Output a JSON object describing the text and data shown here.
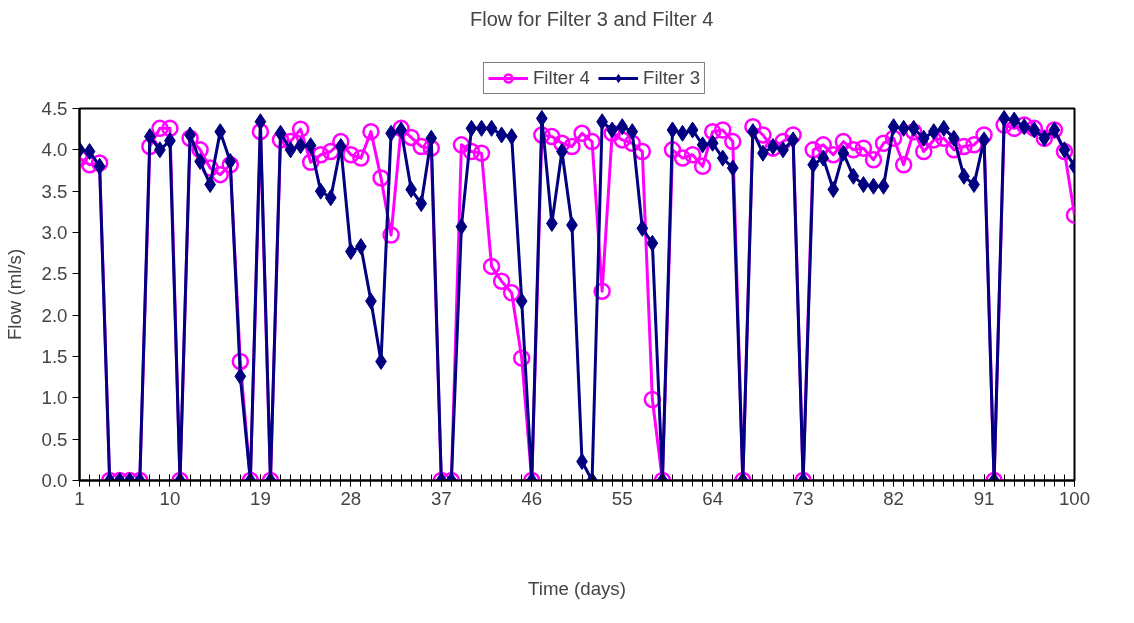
{
  "chart_data": {
    "type": "line",
    "title": "Flow for Filter 3 and  Filter 4",
    "xlabel": "Time (days)",
    "ylabel": "Flow (ml/s)",
    "x": [
      1,
      2,
      3,
      4,
      5,
      6,
      7,
      8,
      9,
      10,
      11,
      12,
      13,
      14,
      15,
      16,
      17,
      18,
      19,
      20,
      21,
      22,
      23,
      24,
      25,
      26,
      27,
      28,
      29,
      30,
      31,
      32,
      33,
      34,
      35,
      36,
      37,
      38,
      39,
      40,
      41,
      42,
      43,
      44,
      45,
      46,
      47,
      48,
      49,
      50,
      51,
      52,
      53,
      54,
      55,
      56,
      57,
      58,
      59,
      60,
      61,
      62,
      63,
      64,
      65,
      66,
      67,
      68,
      69,
      70,
      71,
      72,
      73,
      74,
      75,
      76,
      77,
      78,
      79,
      80,
      81,
      82,
      83,
      84,
      85,
      86,
      87,
      88,
      89,
      90,
      91,
      92,
      93,
      94,
      95,
      96,
      97,
      98,
      99,
      100
    ],
    "series": [
      {
        "name": "Filter 4",
        "color": "#ff00ff",
        "marker": "circle",
        "values": [
          3.9,
          3.82,
          3.84,
          0,
          0,
          0,
          0,
          4.04,
          4.26,
          4.26,
          0,
          4.14,
          4.0,
          3.78,
          3.7,
          3.82,
          1.44,
          0,
          4.22,
          0,
          4.12,
          4.1,
          4.25,
          3.85,
          3.94,
          3.98,
          4.1,
          3.94,
          3.9,
          4.22,
          3.66,
          2.97,
          4.26,
          4.15,
          4.04,
          4.02,
          0,
          0,
          4.06,
          3.98,
          3.96,
          2.59,
          2.41,
          2.27,
          1.48,
          0,
          4.18,
          4.16,
          4.08,
          4.04,
          4.2,
          4.1,
          2.29,
          4.2,
          4.12,
          4.08,
          3.98,
          0.98,
          0,
          4.0,
          3.9,
          3.94,
          3.8,
          4.22,
          4.24,
          4.1,
          0,
          4.28,
          4.18,
          4.02,
          4.1,
          4.18,
          0,
          4.0,
          4.06,
          3.94,
          4.1,
          4.0,
          4.02,
          3.88,
          4.08,
          4.14,
          3.82,
          4.22,
          3.98,
          4.12,
          4.14,
          4.0,
          4.04,
          4.06,
          4.18,
          0,
          4.3,
          4.26,
          4.3,
          4.26,
          4.14,
          4.24,
          3.98,
          3.21
        ]
      },
      {
        "name": "Filter 3",
        "color": "#000080",
        "marker": "diamond",
        "values": [
          4.0,
          3.98,
          3.8,
          0,
          0,
          0,
          0,
          4.16,
          4.0,
          4.11,
          0,
          4.18,
          3.86,
          3.58,
          4.22,
          3.86,
          1.26,
          0,
          4.34,
          0,
          4.2,
          4.0,
          4.05,
          4.05,
          3.5,
          3.42,
          4.04,
          2.77,
          2.83,
          2.17,
          1.44,
          4.2,
          4.24,
          3.52,
          3.35,
          4.14,
          0,
          0,
          3.07,
          4.26,
          4.26,
          4.26,
          4.18,
          4.16,
          2.17,
          0,
          4.38,
          3.11,
          3.98,
          3.09,
          0.23,
          0,
          4.34,
          4.24,
          4.28,
          4.22,
          3.05,
          2.87,
          0,
          4.24,
          4.2,
          4.24,
          4.06,
          4.08,
          3.9,
          3.78,
          0,
          4.22,
          3.96,
          4.04,
          4.0,
          4.12,
          0,
          3.82,
          3.9,
          3.52,
          3.96,
          3.68,
          3.58,
          3.56,
          3.56,
          4.28,
          4.26,
          4.26,
          4.14,
          4.22,
          4.26,
          4.14,
          3.68,
          3.58,
          4.12,
          0,
          4.38,
          4.36,
          4.28,
          4.24,
          4.14,
          4.24,
          4.0,
          3.8
        ]
      }
    ],
    "xlim": [
      1,
      100
    ],
    "xticks": [
      1,
      10,
      19,
      28,
      37,
      46,
      55,
      64,
      73,
      82,
      91,
      100
    ],
    "ylim": [
      0,
      4.5
    ],
    "yticks": [
      {
        "value": 0,
        "label": "0.0"
      },
      {
        "value": 0.5,
        "label": "0.5"
      },
      {
        "value": 1,
        "label": "1.0"
      },
      {
        "value": 1.5,
        "label": "1.5"
      },
      {
        "value": 2,
        "label": "2.0"
      },
      {
        "value": 2.5,
        "label": "2.5"
      },
      {
        "value": 3,
        "label": "3.0"
      },
      {
        "value": 3.5,
        "label": "3.5"
      },
      {
        "value": 4,
        "label": "4.0"
      },
      {
        "value": 4.5,
        "label": "4.5"
      }
    ],
    "grid": false,
    "legend": "top",
    "line_style": "solid"
  }
}
